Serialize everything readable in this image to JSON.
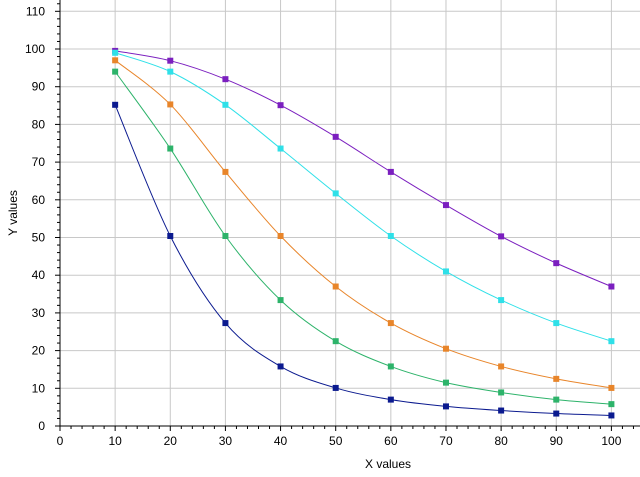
{
  "chart_data": {
    "type": "line",
    "xlabel": "X values",
    "ylabel": "Y values",
    "xlim": [
      0,
      107
    ],
    "ylim": [
      0,
      113
    ],
    "xticks": [
      0,
      10,
      20,
      30,
      40,
      50,
      60,
      70,
      80,
      90,
      100
    ],
    "yticks": [
      0,
      10,
      20,
      30,
      40,
      50,
      60,
      70,
      80,
      90,
      100,
      110
    ],
    "grid": true,
    "x": [
      10,
      20,
      30,
      40,
      50,
      60,
      70,
      80,
      90,
      100
    ],
    "series": [
      {
        "color": "#7b1fbf",
        "values": [
          99.5,
          96.9,
          92.0,
          85.1,
          76.7,
          67.4,
          58.6,
          50.3,
          43.2,
          37.0
        ]
      },
      {
        "color": "#2fe0e8",
        "values": [
          99.0,
          94.0,
          85.2,
          73.6,
          61.7,
          50.4,
          41.0,
          33.4,
          27.3,
          22.5
        ]
      },
      {
        "color": "#e8852a",
        "values": [
          97.0,
          85.3,
          67.4,
          50.4,
          37.0,
          27.3,
          20.5,
          15.8,
          12.5,
          10.1
        ]
      },
      {
        "color": "#2db36a",
        "values": [
          94.0,
          73.6,
          50.4,
          33.4,
          22.5,
          15.8,
          11.5,
          8.9,
          7.0,
          5.8
        ]
      },
      {
        "color": "#0b1a8f",
        "values": [
          85.2,
          50.4,
          27.3,
          15.8,
          10.1,
          7.0,
          5.2,
          4.1,
          3.3,
          2.8
        ]
      }
    ]
  }
}
